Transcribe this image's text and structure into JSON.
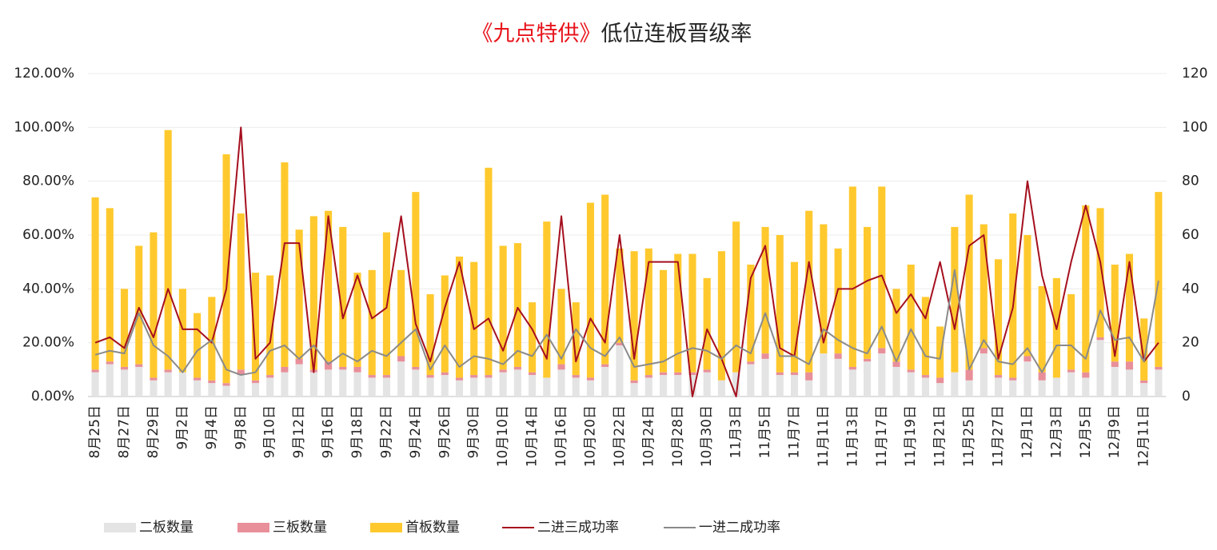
{
  "chart_data": {
    "type": "bar",
    "title": [
      "《九点特供》",
      "低位连板晋级率"
    ],
    "title_colors": [
      "#e8141b",
      "#262626"
    ],
    "categories": [
      "8月25日",
      null,
      "8月27日",
      null,
      "8月29日",
      null,
      "9月2日",
      null,
      "9月4日",
      null,
      "9月8日",
      null,
      "9月10日",
      null,
      "9月12日",
      null,
      "9月16日",
      null,
      "9月18日",
      null,
      "9月22日",
      null,
      "9月24日",
      null,
      "9月26日",
      null,
      "9月30日",
      null,
      "10月10日",
      null,
      "10月14日",
      null,
      "10月16日",
      null,
      "10月20日",
      null,
      "10月22日",
      null,
      "10月24日",
      null,
      "10月28日",
      null,
      "10月30日",
      null,
      "11月3日",
      null,
      "11月5日",
      null,
      "11月7日",
      null,
      "11月11日",
      null,
      "11月13日",
      null,
      "11月17日",
      null,
      "11月19日",
      null,
      "11月21日",
      null,
      "11月25日",
      null,
      "11月27日",
      null,
      "12月1日",
      null,
      "12月3日",
      null,
      "12月5日",
      null,
      "12月9日",
      null,
      "12月11日",
      null
    ],
    "series": [
      {
        "name": "二板数量",
        "type": "bar",
        "axis": "y2",
        "color": "#e4e4e4",
        "values": [
          9,
          12,
          10,
          11,
          6,
          9,
          9,
          6,
          5,
          4,
          8,
          5,
          7,
          9,
          12,
          9,
          10,
          10,
          9,
          7,
          7,
          13,
          10,
          7,
          8,
          6,
          7,
          7,
          9,
          10,
          8,
          7,
          10,
          7,
          6,
          11,
          19,
          5,
          7,
          8,
          8,
          8,
          9,
          6,
          9,
          12,
          14,
          8,
          8,
          6,
          16,
          14,
          10,
          13,
          16,
          11,
          9,
          7,
          5,
          9,
          6,
          16,
          7,
          6,
          13,
          6,
          7,
          9,
          7,
          21,
          11,
          10,
          5,
          10
        ]
      },
      {
        "name": "三板数量",
        "type": "bar",
        "axis": "y2",
        "color": "#e88f9a",
        "values": [
          1,
          1,
          1,
          1,
          1,
          1,
          0,
          1,
          1,
          1,
          2,
          1,
          1,
          2,
          2,
          1,
          3,
          1,
          2,
          1,
          1,
          2,
          1,
          1,
          1,
          1,
          1,
          1,
          1,
          1,
          1,
          0,
          2,
          1,
          1,
          1,
          1,
          1,
          1,
          1,
          1,
          1,
          1,
          0,
          0,
          1,
          2,
          1,
          1,
          3,
          0,
          2,
          1,
          1,
          2,
          2,
          1,
          1,
          2,
          0,
          4,
          2,
          1,
          1,
          2,
          3,
          0,
          1,
          2,
          1,
          2,
          3,
          1,
          1
        ]
      },
      {
        "name": "首板数量",
        "type": "bar",
        "axis": "y2",
        "color": "#ffc92e",
        "values": [
          64,
          57,
          29,
          44,
          54,
          89,
          31,
          24,
          31,
          85,
          58,
          40,
          37,
          76,
          48,
          57,
          56,
          52,
          35,
          39,
          53,
          32,
          65,
          30,
          36,
          45,
          42,
          77,
          46,
          46,
          26,
          58,
          28,
          27,
          65,
          63,
          35,
          48,
          47,
          38,
          44,
          44,
          34,
          48,
          56,
          36,
          47,
          51,
          41,
          60,
          48,
          39,
          67,
          49,
          60,
          27,
          39,
          29,
          19,
          54,
          65,
          46,
          43,
          61,
          45,
          32,
          37,
          28,
          62,
          48,
          36,
          40,
          23,
          65
        ]
      },
      {
        "name": "二进三成功率",
        "type": "line",
        "color": "#a50f1e",
        "values": [
          20,
          22,
          18,
          33,
          22,
          40,
          25,
          25,
          20,
          40,
          100,
          14,
          20,
          57,
          57,
          9,
          67,
          29,
          45,
          29,
          33,
          67,
          27,
          13,
          33,
          50,
          25,
          29,
          17,
          33,
          25,
          14,
          67,
          13,
          29,
          20,
          60,
          14,
          50,
          50,
          50,
          0,
          25,
          14,
          0,
          44,
          56,
          18,
          15,
          50,
          20,
          40,
          40,
          43,
          45,
          31,
          38,
          29,
          50,
          25,
          56,
          60,
          14,
          33,
          80,
          45,
          25,
          50,
          71,
          50,
          15,
          50,
          13,
          20
        ]
      },
      {
        "name": "一进二成功率",
        "type": "line",
        "color": "#8a8a8a",
        "values": [
          15.5,
          17,
          16,
          31,
          19,
          15,
          9,
          17,
          21,
          10,
          8,
          9,
          17,
          19,
          14,
          19,
          12,
          16,
          13,
          17,
          15,
          20,
          25,
          10,
          19,
          11,
          15,
          14,
          12,
          17,
          15,
          23,
          14,
          25,
          18,
          15,
          22,
          11,
          12,
          13,
          16,
          18,
          17,
          14,
          19,
          16,
          31,
          15,
          15,
          12,
          25,
          21,
          18,
          16,
          26,
          13,
          25,
          15,
          14,
          47,
          10,
          21,
          13,
          12,
          18,
          9,
          19,
          19,
          14,
          32,
          21,
          22,
          13,
          43
        ]
      }
    ],
    "ylim": [
      0,
      120
    ],
    "yticks": [
      {
        "value": 0,
        "label": "0.00%"
      },
      {
        "value": 20,
        "label": "20.00%"
      },
      {
        "value": 40,
        "label": "40.00%"
      },
      {
        "value": 60,
        "label": "60.00%"
      },
      {
        "value": 80,
        "label": "80.00%"
      },
      {
        "value": 100,
        "label": "100.00%"
      },
      {
        "value": 120,
        "label": "120.00%"
      }
    ],
    "y2lim": [
      0,
      120
    ],
    "y2ticks": [
      0,
      20,
      40,
      60,
      80,
      100,
      120
    ],
    "grid": true,
    "legend": "bottom"
  }
}
